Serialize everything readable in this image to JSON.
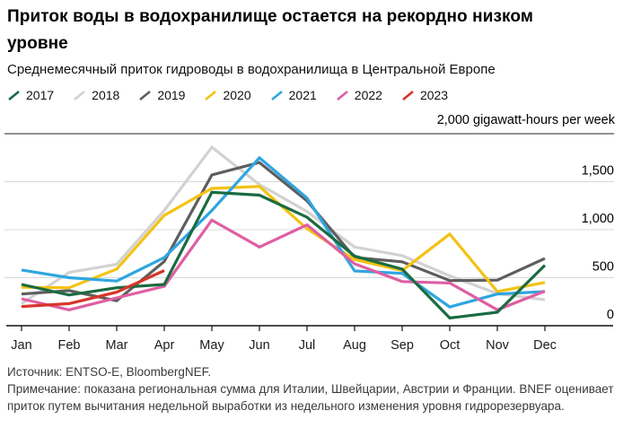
{
  "title": "Приток воды в водохранилище остается на рекордно низком уровне",
  "subtitle": "Среднемесячный приток гидроводы в водохранилища в Центральной Европе",
  "unit_label": "2,000 gigawatt-hours per week",
  "footer": {
    "source": "Источник: ENTSO-E, BloombergNEF.",
    "note": "Примечание: показана региональная сумма для Италии, Швейцарии, Австрии и Франции. BNEF оценивает приток путем вычитания недельной выработки из недельного изменения уровня гидрорезервуара."
  },
  "chart_data": {
    "type": "line",
    "categories": [
      "Jan",
      "Feb",
      "Mar",
      "Apr",
      "May",
      "Jun",
      "Jul",
      "Aug",
      "Sep",
      "Oct",
      "Nov",
      "Dec"
    ],
    "series": [
      {
        "name": "2017",
        "color": "#1a6b41",
        "values": [
          430,
          320,
          395,
          430,
          1390,
          1360,
          1130,
          725,
          590,
          80,
          140,
          630
        ]
      },
      {
        "name": "2018",
        "color": "#d2d2d2",
        "values": [
          230,
          555,
          640,
          1200,
          1860,
          1470,
          1190,
          820,
          730,
          520,
          335,
          270
        ]
      },
      {
        "name": "2019",
        "color": "#5e5e5e",
        "values": [
          330,
          365,
          260,
          670,
          1570,
          1700,
          1300,
          710,
          665,
          470,
          475,
          700
        ]
      },
      {
        "name": "2020",
        "color": "#f3c213",
        "values": [
          400,
          395,
          590,
          1150,
          1430,
          1450,
          1010,
          690,
          575,
          955,
          355,
          450
        ]
      },
      {
        "name": "2021",
        "color": "#2fa5e0",
        "values": [
          580,
          500,
          465,
          710,
          1200,
          1750,
          1330,
          570,
          545,
          195,
          330,
          355
        ]
      },
      {
        "name": "2022",
        "color": "#de5fa2",
        "values": [
          280,
          165,
          290,
          410,
          1100,
          820,
          1050,
          645,
          460,
          445,
          165,
          360
        ]
      },
      {
        "name": "2023",
        "color": "#d8352a",
        "values": [
          200,
          230,
          350,
          575,
          null,
          null,
          null,
          null,
          null,
          null,
          null,
          null
        ]
      }
    ],
    "ylim": [
      0,
      2000
    ],
    "yticks": [
      {
        "value": 1500,
        "label": "1,500"
      },
      {
        "value": 1000,
        "label": "1,000"
      },
      {
        "value": 500,
        "label": "500"
      },
      {
        "value": 0,
        "label": "0"
      }
    ],
    "top_line_value": 2000,
    "grid": true,
    "legend_position": "top",
    "xlabel": "",
    "ylabel": "2,000 gigawatt-hours per week"
  }
}
